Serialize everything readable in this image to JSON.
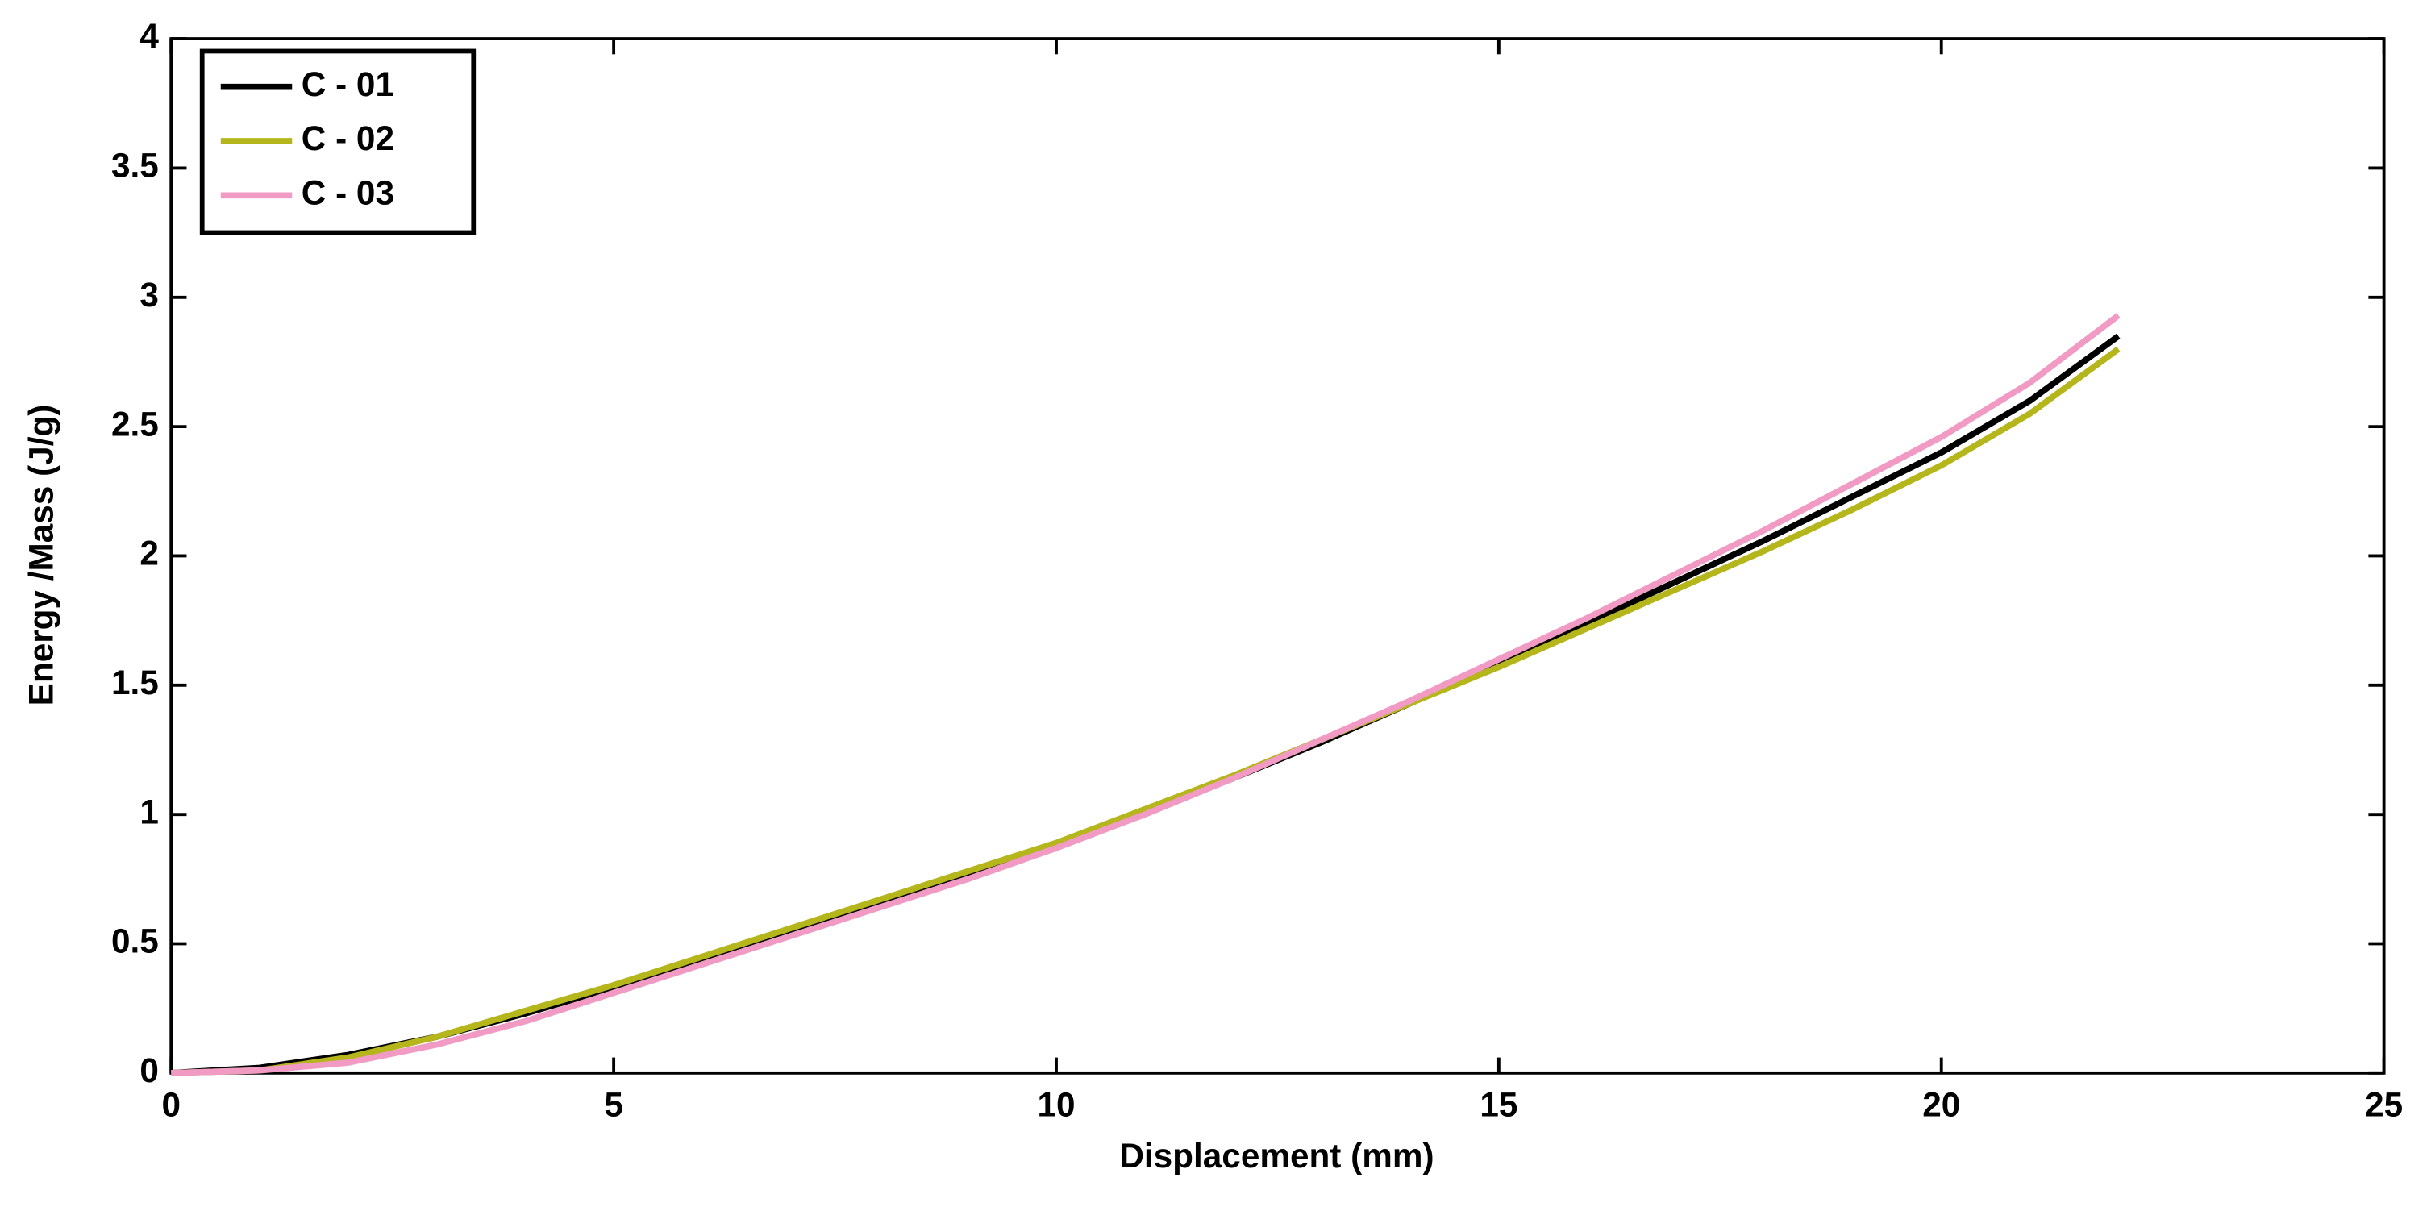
{
  "chart_data": {
    "type": "line",
    "xlabel": "Displacement (mm)",
    "ylabel": "Energy /Mass (J/g)",
    "x": [
      0,
      1,
      2,
      3,
      4,
      5,
      6,
      7,
      8,
      9,
      10,
      11,
      12,
      13,
      14,
      15,
      16,
      17,
      18,
      19,
      20,
      21,
      22
    ],
    "series": [
      {
        "name": "C - 01",
        "color": "#000000",
        "values": [
          0,
          0.02,
          0.07,
          0.14,
          0.23,
          0.33,
          0.43,
          0.54,
          0.65,
          0.76,
          0.88,
          1.01,
          1.14,
          1.28,
          1.43,
          1.58,
          1.74,
          1.9,
          2.06,
          2.23,
          2.4,
          2.6,
          2.85
        ]
      },
      {
        "name": "C - 02",
        "color": "#b5b51c",
        "values": [
          0,
          0.01,
          0.06,
          0.14,
          0.24,
          0.34,
          0.45,
          0.56,
          0.67,
          0.78,
          0.89,
          1.02,
          1.15,
          1.29,
          1.43,
          1.57,
          1.72,
          1.87,
          2.02,
          2.18,
          2.35,
          2.55,
          2.8
        ]
      },
      {
        "name": "C - 03",
        "color": "#f09ac4",
        "values": [
          0,
          0.01,
          0.04,
          0.11,
          0.2,
          0.31,
          0.42,
          0.53,
          0.64,
          0.75,
          0.87,
          1.0,
          1.14,
          1.29,
          1.44,
          1.6,
          1.76,
          1.93,
          2.1,
          2.28,
          2.46,
          2.67,
          2.93
        ]
      }
    ],
    "xlim": [
      0,
      25
    ],
    "xticks": [
      0,
      5,
      10,
      15,
      20,
      25
    ],
    "ylim": [
      0,
      4
    ],
    "yticks": [
      0,
      0.5,
      1,
      1.5,
      2,
      2.5,
      3,
      3.5,
      4
    ],
    "grid": false,
    "legend": "upper-left"
  }
}
